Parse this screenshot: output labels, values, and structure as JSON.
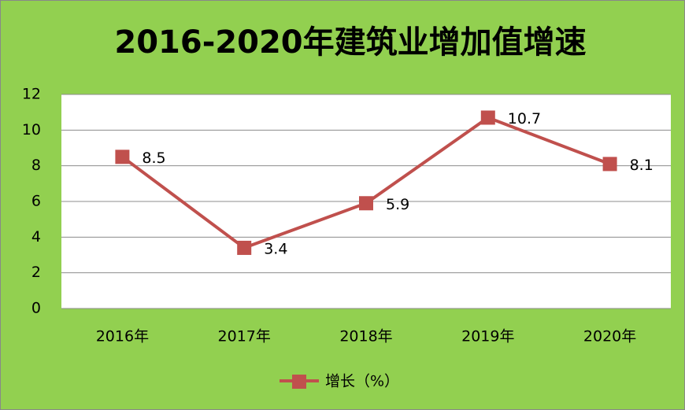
{
  "chart_data": {
    "type": "line",
    "title": "2016-2020年建筑业增加值增速",
    "categories": [
      "2016年",
      "2017年",
      "2018年",
      "2019年",
      "2020年"
    ],
    "series": [
      {
        "name": "增长（%）",
        "color": "#c0504d",
        "values": [
          8.5,
          3.4,
          5.9,
          10.7,
          8.1
        ]
      }
    ],
    "ylim": [
      0,
      12
    ],
    "yticks": [
      0,
      2,
      4,
      6,
      8,
      10,
      12
    ],
    "grid": true,
    "legend": "bottom",
    "data_labels": true
  }
}
